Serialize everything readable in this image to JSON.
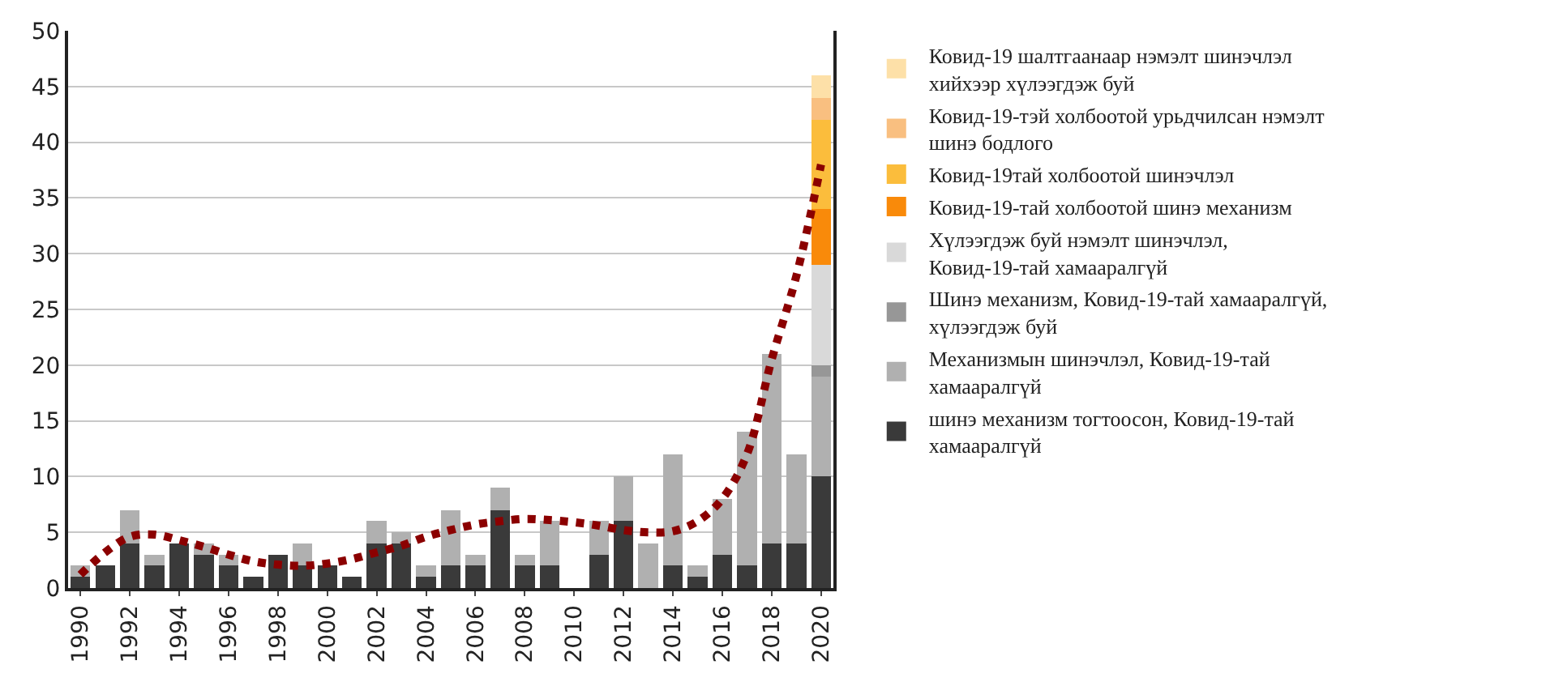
{
  "chart_data": {
    "type": "bar",
    "stacked": true,
    "x": [
      1990,
      1991,
      1992,
      1993,
      1994,
      1995,
      1996,
      1997,
      1998,
      1999,
      2000,
      2001,
      2002,
      2003,
      2004,
      2005,
      2006,
      2007,
      2008,
      2009,
      2010,
      2011,
      2012,
      2013,
      2014,
      2015,
      2016,
      2017,
      2018,
      2019,
      2020
    ],
    "xlim": [
      1989.5,
      2020.5
    ],
    "xticks": [
      1990,
      1992,
      1994,
      1996,
      1998,
      2000,
      2002,
      2004,
      2006,
      2008,
      2010,
      2012,
      2014,
      2016,
      2018,
      2020
    ],
    "ylim": [
      0,
      50
    ],
    "yticks": [
      0,
      5,
      10,
      15,
      20,
      25,
      30,
      35,
      40,
      45,
      50
    ],
    "grid": "y",
    "legend": "right",
    "series": [
      {
        "name": "шинэ механизм тогтоосон, Ковид-19-тай хамааралгүй",
        "color": "#3a3a3a",
        "values": [
          1,
          2,
          4,
          2,
          4,
          3,
          2,
          1,
          3,
          2,
          2,
          1,
          4,
          4,
          1,
          2,
          2,
          7,
          2,
          2,
          0,
          3,
          6,
          0,
          2,
          1,
          3,
          2,
          4,
          4,
          10
        ]
      },
      {
        "name": "Механизмын шинэчлэл, Ковид-19-тай хамааралгүй",
        "color": "#b0b0b0",
        "values": [
          1,
          0,
          3,
          1,
          0,
          1,
          1,
          0,
          0,
          2,
          0,
          0,
          2,
          1,
          1,
          5,
          1,
          2,
          1,
          4,
          0,
          3,
          4,
          4,
          10,
          1,
          5,
          12,
          17,
          8,
          9
        ]
      },
      {
        "name": "Шинэ механизм, Ковид-19-тай хамааралгүй, хүлээгдэж буй",
        "color": "#979797",
        "values": [
          null,
          null,
          null,
          null,
          null,
          null,
          null,
          null,
          null,
          null,
          null,
          null,
          null,
          null,
          null,
          null,
          null,
          null,
          null,
          null,
          null,
          null,
          null,
          null,
          null,
          null,
          null,
          null,
          null,
          null,
          1
        ]
      },
      {
        "name": "Хүлээгдэж буй нэмэлт шинэчлэл, Ковид-19-тай хамааралгүй",
        "color": "#d9d9d9",
        "values": [
          null,
          null,
          null,
          null,
          null,
          null,
          null,
          null,
          null,
          null,
          null,
          null,
          null,
          null,
          null,
          null,
          null,
          null,
          null,
          null,
          null,
          null,
          null,
          null,
          null,
          null,
          null,
          null,
          null,
          null,
          9
        ]
      },
      {
        "name": "Ковид-19-тай холбоотой шинэ механизм",
        "color": "#f98a0a",
        "values": [
          null,
          null,
          null,
          null,
          null,
          null,
          null,
          null,
          null,
          null,
          null,
          null,
          null,
          null,
          null,
          null,
          null,
          null,
          null,
          null,
          null,
          null,
          null,
          null,
          null,
          null,
          null,
          null,
          null,
          null,
          5
        ]
      },
      {
        "name": "Ковид-19тай холбоотой шинэчлэл",
        "color": "#fbbd3c",
        "values": [
          null,
          null,
          null,
          null,
          null,
          null,
          null,
          null,
          null,
          null,
          null,
          null,
          null,
          null,
          null,
          null,
          null,
          null,
          null,
          null,
          null,
          null,
          null,
          null,
          null,
          null,
          null,
          null,
          null,
          null,
          8
        ]
      },
      {
        "name": "Ковид-19-тэй холбоотой урьдчилсан нэмэлт шинэ бодлого",
        "color": "#f9bf80",
        "values": [
          null,
          null,
          null,
          null,
          null,
          null,
          null,
          null,
          null,
          null,
          null,
          null,
          null,
          null,
          null,
          null,
          null,
          null,
          null,
          null,
          null,
          null,
          null,
          null,
          null,
          null,
          null,
          null,
          null,
          null,
          2
        ]
      },
      {
        "name": "Ковид-19 шалтгаанаар нэмэлт шинэчлэл хийхээр хүлээгдэж буй",
        "color": "#fde0a8",
        "values": [
          null,
          null,
          null,
          null,
          null,
          null,
          null,
          null,
          null,
          null,
          null,
          null,
          null,
          null,
          null,
          null,
          null,
          null,
          null,
          null,
          null,
          null,
          null,
          null,
          null,
          null,
          null,
          null,
          null,
          null,
          2
        ]
      },
      {
        "type": "line",
        "line_style": "dotted",
        "color": "#8b0000",
        "values": [
          1.2,
          3.2,
          4.6,
          4.8,
          4.3,
          3.7,
          3.0,
          2.4,
          2.1,
          2.0,
          2.2,
          2.6,
          3.2,
          3.8,
          4.6,
          5.2,
          5.7,
          6.0,
          6.2,
          6.1,
          5.9,
          5.6,
          5.2,
          5.0,
          5.1,
          6.0,
          8.0,
          12.0,
          20.5,
          28.0,
          38.0
        ]
      }
    ]
  }
}
